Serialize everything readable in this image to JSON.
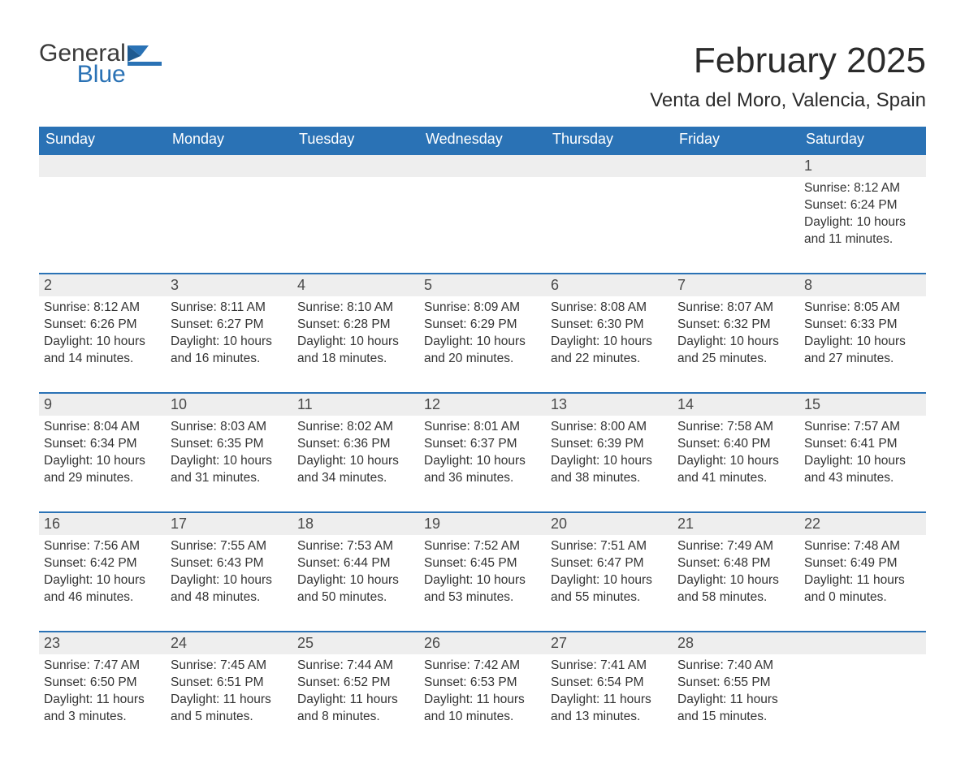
{
  "brand": {
    "general": "General",
    "blue": "Blue"
  },
  "colors": {
    "brand_blue": "#2a72b5",
    "header_bg": "#2a72b5",
    "row_header_bg": "#eeeeee",
    "border_blue": "#2a72b5",
    "text": "#333333",
    "background": "#ffffff"
  },
  "title": "February 2025",
  "location": "Venta del Moro, Valencia, Spain",
  "weekdays": [
    "Sunday",
    "Monday",
    "Tuesday",
    "Wednesday",
    "Thursday",
    "Friday",
    "Saturday"
  ],
  "labels": {
    "sunrise": "Sunrise",
    "sunset": "Sunset",
    "daylight": "Daylight"
  },
  "weeks": [
    [
      null,
      null,
      null,
      null,
      null,
      null,
      {
        "n": "1",
        "sunrise": "8:12 AM",
        "sunset": "6:24 PM",
        "daylight": "10 hours and 11 minutes."
      }
    ],
    [
      {
        "n": "2",
        "sunrise": "8:12 AM",
        "sunset": "6:26 PM",
        "daylight": "10 hours and 14 minutes."
      },
      {
        "n": "3",
        "sunrise": "8:11 AM",
        "sunset": "6:27 PM",
        "daylight": "10 hours and 16 minutes."
      },
      {
        "n": "4",
        "sunrise": "8:10 AM",
        "sunset": "6:28 PM",
        "daylight": "10 hours and 18 minutes."
      },
      {
        "n": "5",
        "sunrise": "8:09 AM",
        "sunset": "6:29 PM",
        "daylight": "10 hours and 20 minutes."
      },
      {
        "n": "6",
        "sunrise": "8:08 AM",
        "sunset": "6:30 PM",
        "daylight": "10 hours and 22 minutes."
      },
      {
        "n": "7",
        "sunrise": "8:07 AM",
        "sunset": "6:32 PM",
        "daylight": "10 hours and 25 minutes."
      },
      {
        "n": "8",
        "sunrise": "8:05 AM",
        "sunset": "6:33 PM",
        "daylight": "10 hours and 27 minutes."
      }
    ],
    [
      {
        "n": "9",
        "sunrise": "8:04 AM",
        "sunset": "6:34 PM",
        "daylight": "10 hours and 29 minutes."
      },
      {
        "n": "10",
        "sunrise": "8:03 AM",
        "sunset": "6:35 PM",
        "daylight": "10 hours and 31 minutes."
      },
      {
        "n": "11",
        "sunrise": "8:02 AM",
        "sunset": "6:36 PM",
        "daylight": "10 hours and 34 minutes."
      },
      {
        "n": "12",
        "sunrise": "8:01 AM",
        "sunset": "6:37 PM",
        "daylight": "10 hours and 36 minutes."
      },
      {
        "n": "13",
        "sunrise": "8:00 AM",
        "sunset": "6:39 PM",
        "daylight": "10 hours and 38 minutes."
      },
      {
        "n": "14",
        "sunrise": "7:58 AM",
        "sunset": "6:40 PM",
        "daylight": "10 hours and 41 minutes."
      },
      {
        "n": "15",
        "sunrise": "7:57 AM",
        "sunset": "6:41 PM",
        "daylight": "10 hours and 43 minutes."
      }
    ],
    [
      {
        "n": "16",
        "sunrise": "7:56 AM",
        "sunset": "6:42 PM",
        "daylight": "10 hours and 46 minutes."
      },
      {
        "n": "17",
        "sunrise": "7:55 AM",
        "sunset": "6:43 PM",
        "daylight": "10 hours and 48 minutes."
      },
      {
        "n": "18",
        "sunrise": "7:53 AM",
        "sunset": "6:44 PM",
        "daylight": "10 hours and 50 minutes."
      },
      {
        "n": "19",
        "sunrise": "7:52 AM",
        "sunset": "6:45 PM",
        "daylight": "10 hours and 53 minutes."
      },
      {
        "n": "20",
        "sunrise": "7:51 AM",
        "sunset": "6:47 PM",
        "daylight": "10 hours and 55 minutes."
      },
      {
        "n": "21",
        "sunrise": "7:49 AM",
        "sunset": "6:48 PM",
        "daylight": "10 hours and 58 minutes."
      },
      {
        "n": "22",
        "sunrise": "7:48 AM",
        "sunset": "6:49 PM",
        "daylight": "11 hours and 0 minutes."
      }
    ],
    [
      {
        "n": "23",
        "sunrise": "7:47 AM",
        "sunset": "6:50 PM",
        "daylight": "11 hours and 3 minutes."
      },
      {
        "n": "24",
        "sunrise": "7:45 AM",
        "sunset": "6:51 PM",
        "daylight": "11 hours and 5 minutes."
      },
      {
        "n": "25",
        "sunrise": "7:44 AM",
        "sunset": "6:52 PM",
        "daylight": "11 hours and 8 minutes."
      },
      {
        "n": "26",
        "sunrise": "7:42 AM",
        "sunset": "6:53 PM",
        "daylight": "11 hours and 10 minutes."
      },
      {
        "n": "27",
        "sunrise": "7:41 AM",
        "sunset": "6:54 PM",
        "daylight": "11 hours and 13 minutes."
      },
      {
        "n": "28",
        "sunrise": "7:40 AM",
        "sunset": "6:55 PM",
        "daylight": "11 hours and 15 minutes."
      },
      null
    ]
  ]
}
